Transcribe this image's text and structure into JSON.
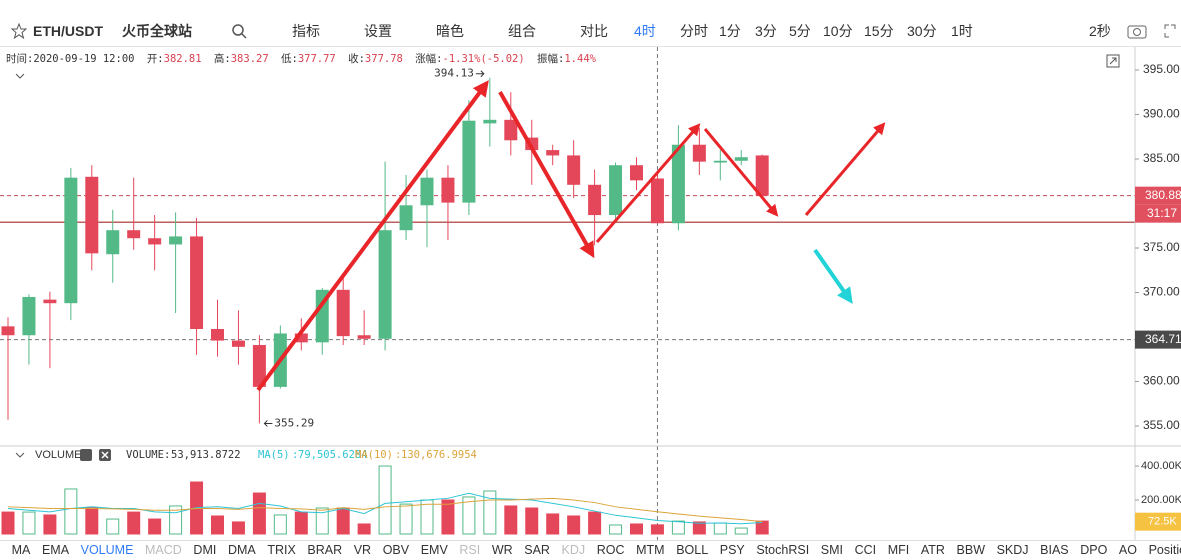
{
  "toolbar": {
    "symbol": "ETH/USDT",
    "exchange": "火币全球站",
    "buttons": [
      "指标",
      "设置",
      "暗色",
      "组合",
      "对比"
    ],
    "intervals": [
      "4时",
      "分时",
      "1分",
      "3分",
      "5分",
      "10分",
      "15分",
      "30分",
      "1时"
    ],
    "refresh": "2秒"
  },
  "indicators": [
    "MA",
    "EMA",
    "VOLUME",
    "MACD",
    "DMI",
    "DMA",
    "TRIX",
    "BRAR",
    "VR",
    "OBV",
    "EMV",
    "RSI",
    "WR",
    "SAR",
    "KDJ",
    "ROC",
    "MTM",
    "BOLL",
    "PSY",
    "StochRSI",
    "SMI",
    "CCI",
    "MFI",
    "ATR",
    "BBW",
    "SKDJ",
    "BIAS",
    "DPO",
    "AO",
    "Position"
  ],
  "chart_data": {
    "type": "candlestick",
    "info": {
      "time_label": "时间:",
      "open_label": "开:",
      "high_label": "高:",
      "low_label": "低:",
      "close_label": "收:",
      "change_label": "涨幅:",
      "change": "-1.31%(-5.02)",
      "amplitude_label": "振幅:",
      "amplitude": "1.44%"
    },
    "categories": [
      null,
      null,
      null,
      null,
      null,
      null,
      null,
      null,
      null,
      null,
      null,
      null,
      null,
      null,
      null,
      null,
      null,
      null,
      null,
      null,
      null,
      null,
      null,
      null,
      null,
      null,
      null,
      null,
      null,
      null,
      null,
      "2020-09-19 12:00",
      null,
      null,
      null,
      null,
      null
    ],
    "open": [
      366.2,
      365.2,
      369.2,
      368.8,
      383.0,
      374.3,
      377.0,
      376.1,
      375.4,
      376.3,
      365.9,
      364.6,
      364.1,
      359.4,
      365.4,
      364.4,
      370.3,
      365.2,
      364.8,
      377.0,
      379.8,
      382.9,
      380.1,
      389.0,
      389.4,
      387.4,
      386.0,
      385.4,
      382.1,
      378.7,
      384.3,
      382.81,
      377.78,
      386.6,
      384.6,
      384.8,
      385.4
    ],
    "high": [
      367.2,
      369.8,
      370.1,
      384.0,
      384.3,
      379.3,
      382.9,
      378.7,
      379.0,
      378.4,
      369.2,
      368.0,
      365.2,
      366.3,
      367.1,
      370.5,
      372.0,
      368.0,
      384.7,
      383.2,
      383.8,
      384.3,
      391.6,
      394.13,
      392.5,
      389.4,
      386.6,
      387.1,
      383.8,
      384.6,
      385.2,
      383.27,
      388.8,
      388.5,
      386.0,
      386.0,
      385.5
    ],
    "low": [
      355.7,
      361.9,
      361.5,
      366.9,
      372.5,
      371.1,
      374.8,
      372.5,
      367.7,
      363.0,
      362.8,
      361.9,
      355.29,
      359.2,
      363.5,
      363.0,
      364.1,
      364.1,
      363.5,
      375.9,
      375.1,
      375.9,
      378.7,
      386.4,
      385.4,
      382.1,
      384.3,
      380.6,
      375.3,
      378.1,
      381.5,
      377.77,
      377.0,
      383.2,
      382.6,
      384.3,
      380.6
    ],
    "close": [
      365.2,
      369.5,
      368.8,
      382.9,
      374.4,
      377.0,
      376.1,
      375.4,
      376.3,
      365.9,
      364.6,
      363.9,
      359.4,
      365.4,
      364.4,
      370.3,
      365.1,
      364.8,
      377.0,
      379.8,
      382.9,
      380.1,
      389.3,
      389.4,
      387.1,
      386.0,
      385.4,
      382.1,
      378.7,
      384.3,
      382.6,
      377.78,
      386.6,
      384.7,
      384.8,
      385.2,
      380.88
    ],
    "up_color": "#53b987",
    "down_color": "#e5475a",
    "ylim": [
      352.87,
      397.58
    ],
    "yticks": [
      {
        "value": 395,
        "label": "395.00"
      },
      {
        "value": 390,
        "label": "390.00"
      },
      {
        "value": 385,
        "label": "385.00"
      },
      {
        "value": 375,
        "label": "375.00"
      },
      {
        "value": 370,
        "label": "370.00"
      },
      {
        "value": 360,
        "label": "360.00"
      },
      {
        "value": 355,
        "label": "355.00"
      }
    ],
    "countdown": "31:17",
    "hline": 377.9,
    "crosshair_price": 364.71,
    "volume_name": "VOLUME",
    "legend_separator": ":",
    "volume": [
      129000,
      129000,
      112000,
      265000,
      153000,
      88000,
      129000,
      88000,
      165000,
      306000,
      106000,
      71000,
      241000,
      112000,
      129000,
      153000,
      153000,
      59000,
      400000,
      176000,
      200000,
      200000,
      218000,
      253000,
      165000,
      153000,
      118000,
      106000,
      129000,
      53000,
      59000,
      53913.8722,
      76000,
      71000,
      65000,
      35000,
      76000
    ],
    "volume_value_labels": [
      null,
      null,
      null,
      null,
      null,
      null,
      null,
      null,
      null,
      null,
      null,
      null,
      null,
      null,
      null,
      null,
      null,
      null,
      null,
      null,
      null,
      null,
      null,
      null,
      null,
      null,
      null,
      null,
      null,
      null,
      null,
      "53,913.8722",
      null,
      null,
      null,
      null,
      null
    ],
    "vol_ylim": [
      0,
      512000
    ],
    "vol_yticks": [
      {
        "value": 400000,
        "label": "400.00K"
      },
      {
        "value": 200000,
        "label": "200.00K"
      }
    ],
    "series": [
      {
        "name": "MA(5)",
        "color": "#2ec4d6",
        "values": [
          150000,
          140000,
          130000,
          150000,
          160000,
          150000,
          150000,
          130000,
          125000,
          155000,
          160000,
          150000,
          180000,
          165000,
          130000,
          125000,
          150000,
          120000,
          180000,
          190000,
          200000,
          210000,
          240000,
          210000,
          205000,
          200000,
          180000,
          160000,
          135000,
          110000,
          95000,
          79505.6284,
          72000,
          63000,
          65000,
          60000,
          68000
        ],
        "value_labels": [
          null,
          null,
          null,
          null,
          null,
          null,
          null,
          null,
          null,
          null,
          null,
          null,
          null,
          null,
          null,
          null,
          null,
          null,
          null,
          null,
          null,
          null,
          null,
          null,
          null,
          null,
          null,
          null,
          null,
          null,
          null,
          "79,505.6284",
          null,
          null,
          null,
          null,
          null
        ]
      },
      {
        "name": "MA(10)",
        "color": "#dba43a",
        "values": [
          160000,
          155000,
          150000,
          150000,
          150000,
          148000,
          145000,
          140000,
          140000,
          150000,
          150000,
          145000,
          155000,
          150000,
          148000,
          140000,
          155000,
          145000,
          160000,
          165000,
          175000,
          175000,
          190000,
          200000,
          200000,
          205000,
          210000,
          200000,
          185000,
          160000,
          145000,
          130676.9954,
          118000,
          105000,
          95000,
          85000,
          72500
        ],
        "value_labels": [
          null,
          null,
          null,
          null,
          null,
          null,
          null,
          null,
          null,
          null,
          null,
          null,
          null,
          null,
          null,
          null,
          null,
          null,
          null,
          null,
          null,
          null,
          null,
          null,
          null,
          null,
          null,
          null,
          null,
          null,
          null,
          "130,676.9954",
          null,
          null,
          null,
          null,
          "72.5K"
        ]
      }
    ]
  }
}
